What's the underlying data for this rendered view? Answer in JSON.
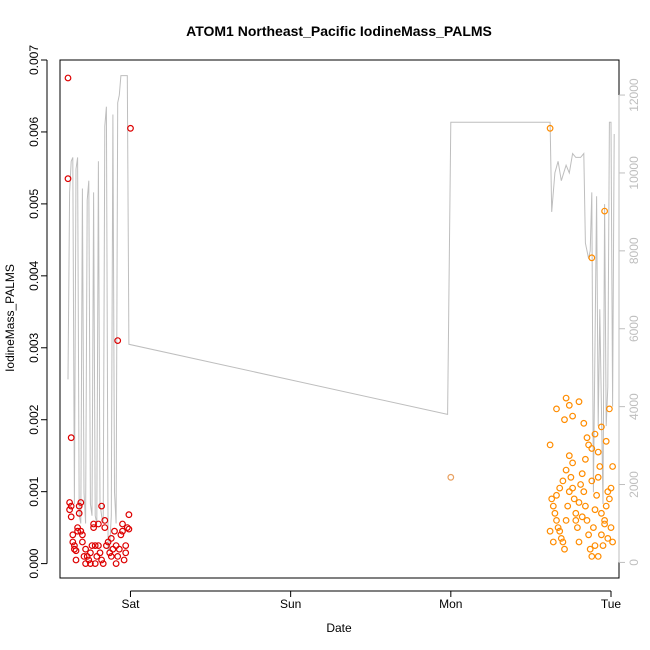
{
  "chart_data": {
    "type": "scatter",
    "title": "ATOM1 Northeast_Pacific IodineMass_PALMS",
    "xlabel": "Date",
    "ylabel": "IodineMass_PALMS",
    "x_ticks": [
      "Sat",
      "Sun",
      "Mon",
      "Tue"
    ],
    "xlim": [
      -0.44,
      3.05
    ],
    "ylim": [
      -0.0002,
      0.007
    ],
    "y_ticks": [
      0.0,
      0.001,
      0.002,
      0.003,
      0.004,
      0.005,
      0.006,
      0.007
    ],
    "y_tick_labels": [
      "0.000",
      "0.001",
      "0.002",
      "0.003",
      "0.004",
      "0.005",
      "0.006",
      "0.007"
    ],
    "y2lim": [
      -400,
      12900
    ],
    "y2_ticks": [
      0,
      2000,
      4000,
      6000,
      8000,
      10000,
      12000
    ],
    "y2_tick_labels": [
      "0",
      "2000",
      "4000",
      "6000",
      "8000",
      "10000",
      "12000"
    ],
    "colors": {
      "series_early": "#dd0000",
      "series_mid": "#e8a060",
      "series_late": "#ff8c00",
      "altitude_line": "#bebebe"
    },
    "series": [
      {
        "color": "#dd0000",
        "points": [
          [
            -0.39,
            0.00675
          ],
          [
            -0.39,
            0.00535
          ],
          [
            -0.37,
            0.00175
          ],
          [
            0.0,
            0.00605
          ],
          [
            -0.08,
            0.0031
          ],
          [
            -0.38,
            0.00085
          ],
          [
            -0.37,
            0.0008
          ],
          [
            -0.38,
            0.00075
          ],
          [
            -0.37,
            0.00065
          ],
          [
            -0.36,
            0.0004
          ],
          [
            -0.36,
            0.0003
          ],
          [
            -0.35,
            0.00025
          ],
          [
            -0.35,
            0.0002
          ],
          [
            -0.34,
            0.00018
          ],
          [
            -0.34,
            5e-05
          ],
          [
            -0.33,
            0.00045
          ],
          [
            -0.33,
            0.0005
          ],
          [
            -0.32,
            0.0007
          ],
          [
            -0.32,
            0.0008
          ],
          [
            -0.31,
            0.00085
          ],
          [
            -0.31,
            0.00045
          ],
          [
            -0.3,
            0.0004
          ],
          [
            -0.3,
            0.0003
          ],
          [
            -0.29,
            0.0001
          ],
          [
            -0.28,
            0.0
          ],
          [
            -0.28,
            0.0002
          ],
          [
            -0.27,
            0.0001
          ],
          [
            -0.26,
            5e-05
          ],
          [
            -0.25,
            0.0
          ],
          [
            -0.25,
            0.00015
          ],
          [
            -0.24,
            0.00025
          ],
          [
            -0.23,
            0.0005
          ],
          [
            -0.23,
            0.00055
          ],
          [
            -0.22,
            0.00025
          ],
          [
            -0.22,
            0.0
          ],
          [
            -0.21,
            0.0001
          ],
          [
            -0.2,
            0.00025
          ],
          [
            -0.2,
            0.00055
          ],
          [
            -0.19,
            0.00015
          ],
          [
            -0.18,
            0.0008
          ],
          [
            -0.18,
            5e-05
          ],
          [
            -0.17,
            0.0
          ],
          [
            -0.16,
            0.0005
          ],
          [
            -0.16,
            0.0006
          ],
          [
            -0.15,
            0.00025
          ],
          [
            -0.14,
            0.0003
          ],
          [
            -0.13,
            0.00015
          ],
          [
            -0.12,
            0.0001
          ],
          [
            -0.12,
            0.00035
          ],
          [
            -0.11,
            0.0002
          ],
          [
            -0.1,
            0.00045
          ],
          [
            -0.09,
            0.0
          ],
          [
            -0.09,
            0.00025
          ],
          [
            -0.08,
            0.0001
          ],
          [
            -0.07,
            0.0002
          ],
          [
            -0.06,
            0.0004
          ],
          [
            -0.05,
            0.00045
          ],
          [
            -0.05,
            0.00055
          ],
          [
            -0.04,
            5e-05
          ],
          [
            -0.03,
            0.00015
          ],
          [
            -0.03,
            0.00025
          ],
          [
            -0.02,
            0.0005
          ],
          [
            -0.01,
            0.00068
          ],
          [
            -0.01,
            0.00048
          ]
        ]
      },
      {
        "color": "#e8a060",
        "points": [
          [
            2.0,
            0.0012
          ]
        ]
      },
      {
        "color": "#ff8c00",
        "points": [
          [
            2.62,
            0.00605
          ],
          [
            2.88,
            0.00425
          ],
          [
            2.96,
            0.0049
          ],
          [
            2.62,
            0.00165
          ],
          [
            2.72,
            0.0023
          ],
          [
            2.66,
            0.00215
          ],
          [
            2.71,
            0.002
          ],
          [
            2.74,
            0.0022
          ],
          [
            2.76,
            0.00205
          ],
          [
            2.8,
            0.00225
          ],
          [
            2.83,
            0.00195
          ],
          [
            2.85,
            0.00175
          ],
          [
            2.88,
            0.0016
          ],
          [
            2.9,
            0.0018
          ],
          [
            2.92,
            0.00155
          ],
          [
            2.94,
            0.0019
          ],
          [
            2.97,
            0.0017
          ],
          [
            2.99,
            0.00215
          ],
          [
            3.01,
            0.00135
          ],
          [
            2.63,
            0.0009
          ],
          [
            2.64,
            0.0008
          ],
          [
            2.65,
            0.0007
          ],
          [
            2.66,
            0.0006
          ],
          [
            2.67,
            0.0005
          ],
          [
            2.68,
            0.00045
          ],
          [
            2.69,
            0.00035
          ],
          [
            2.7,
            0.0003
          ],
          [
            2.71,
            0.0002
          ],
          [
            2.72,
            0.0006
          ],
          [
            2.73,
            0.0008
          ],
          [
            2.74,
            0.001
          ],
          [
            2.75,
            0.0012
          ],
          [
            2.76,
            0.0014
          ],
          [
            2.77,
            0.0009
          ],
          [
            2.78,
            0.0007
          ],
          [
            2.79,
            0.0005
          ],
          [
            2.8,
            0.0003
          ],
          [
            2.81,
            0.0011
          ],
          [
            2.82,
            0.00125
          ],
          [
            2.83,
            0.001
          ],
          [
            2.84,
            0.0008
          ],
          [
            2.85,
            0.0006
          ],
          [
            2.86,
            0.0004
          ],
          [
            2.87,
            0.0002
          ],
          [
            2.88,
            0.0001
          ],
          [
            2.89,
            0.0005
          ],
          [
            2.9,
            0.00075
          ],
          [
            2.91,
            0.00095
          ],
          [
            2.92,
            0.0012
          ],
          [
            2.93,
            0.00135
          ],
          [
            2.94,
            0.0004
          ],
          [
            2.95,
            0.00025
          ],
          [
            2.96,
            0.0006
          ],
          [
            2.97,
            0.0008
          ],
          [
            2.98,
            0.001
          ],
          [
            2.99,
            0.0009
          ],
          [
            3.0,
            0.0005
          ],
          [
            3.01,
            0.0003
          ],
          [
            2.62,
            0.00045
          ],
          [
            2.64,
            0.0003
          ],
          [
            2.66,
            0.00095
          ],
          [
            2.68,
            0.00105
          ],
          [
            2.7,
            0.00115
          ],
          [
            2.72,
            0.0013
          ],
          [
            2.74,
            0.0015
          ],
          [
            2.76,
            0.00105
          ],
          [
            2.78,
            0.0006
          ],
          [
            2.8,
            0.00085
          ],
          [
            2.82,
            0.00065
          ],
          [
            2.84,
            0.00145
          ],
          [
            2.86,
            0.00165
          ],
          [
            2.88,
            0.00115
          ],
          [
            2.9,
            0.00025
          ],
          [
            2.92,
            0.0001
          ],
          [
            2.94,
            0.0007
          ],
          [
            2.96,
            0.00055
          ],
          [
            2.98,
            0.00035
          ],
          [
            3.0,
            0.00105
          ]
        ]
      }
    ],
    "altitude_line": {
      "color": "#bebebe",
      "points": [
        [
          -0.39,
          4700
        ],
        [
          -0.38,
          9500
        ],
        [
          -0.37,
          10300
        ],
        [
          -0.36,
          10400
        ],
        [
          -0.35,
          1500
        ],
        [
          -0.34,
          10100
        ],
        [
          -0.33,
          10400
        ],
        [
          -0.32,
          1200
        ],
        [
          -0.31,
          1000
        ],
        [
          -0.3,
          9600
        ],
        [
          -0.29,
          1800
        ],
        [
          -0.28,
          1000
        ],
        [
          -0.27,
          9300
        ],
        [
          -0.26,
          9800
        ],
        [
          -0.25,
          1500
        ],
        [
          -0.24,
          1200
        ],
        [
          -0.23,
          9500
        ],
        [
          -0.22,
          1200
        ],
        [
          -0.21,
          1000
        ],
        [
          -0.2,
          10300
        ],
        [
          -0.19,
          1500
        ],
        [
          -0.18,
          1200
        ],
        [
          -0.17,
          1000
        ],
        [
          -0.16,
          11200
        ],
        [
          -0.15,
          11700
        ],
        [
          -0.14,
          300
        ],
        [
          -0.13,
          400
        ],
        [
          -0.12,
          1200
        ],
        [
          -0.11,
          11500
        ],
        [
          -0.1,
          1800
        ],
        [
          -0.09,
          1000
        ],
        [
          -0.08,
          11800
        ],
        [
          -0.07,
          12000
        ],
        [
          -0.06,
          12500
        ],
        [
          -0.04,
          12500
        ],
        [
          -0.02,
          12500
        ],
        [
          -0.01,
          5600
        ],
        [
          1.98,
          3800
        ],
        [
          2.0,
          11300
        ],
        [
          2.62,
          11300
        ],
        [
          2.63,
          9000
        ],
        [
          2.65,
          10000
        ],
        [
          2.67,
          10300
        ],
        [
          2.69,
          9800
        ],
        [
          2.72,
          10200
        ],
        [
          2.74,
          10000
        ],
        [
          2.76,
          10500
        ],
        [
          2.78,
          10400
        ],
        [
          2.81,
          10400
        ],
        [
          2.83,
          10500
        ],
        [
          2.84,
          8200
        ],
        [
          2.86,
          7800
        ],
        [
          2.87,
          8000
        ],
        [
          2.88,
          9500
        ],
        [
          2.89,
          1800
        ],
        [
          2.91,
          9400
        ],
        [
          2.92,
          3500
        ],
        [
          2.93,
          6500
        ],
        [
          2.94,
          4000
        ],
        [
          2.95,
          1500
        ],
        [
          2.96,
          9200
        ],
        [
          2.97,
          3500
        ],
        [
          2.98,
          4500
        ],
        [
          2.99,
          11300
        ],
        [
          3.0,
          11300
        ],
        [
          3.01,
          4000
        ],
        [
          3.02,
          11000
        ]
      ]
    }
  }
}
